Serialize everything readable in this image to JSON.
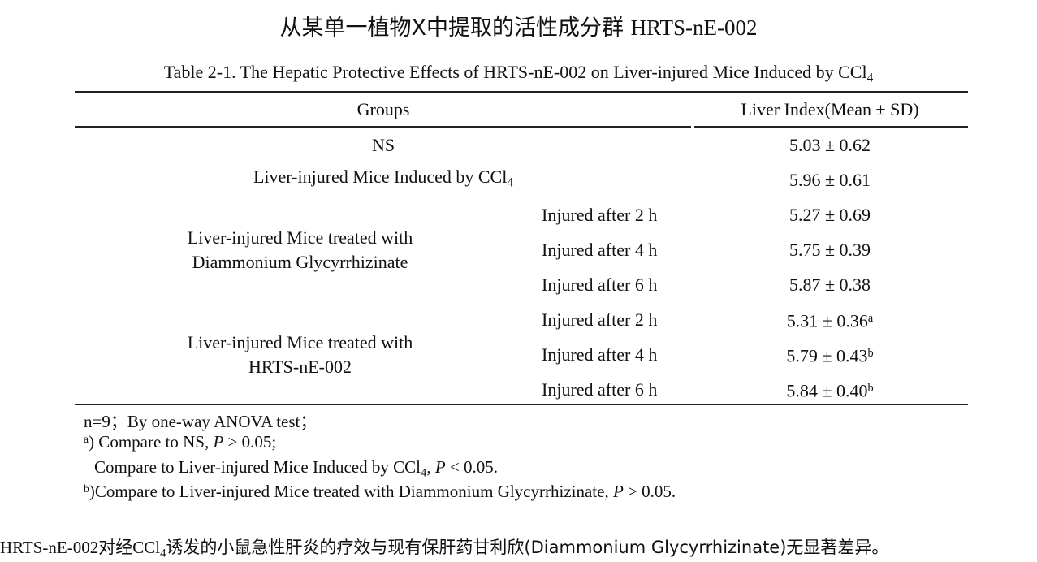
{
  "title": [
    {
      "text": "从某单一植物X中提取的活性成分群 ",
      "style": "sans"
    },
    {
      "text": "HRTS-nE-002"
    }
  ],
  "table": {
    "caption": [
      {
        "text": "Table 2-1. The Hepatic Protective Effects of HRTS-nE-002 on Liver-injured Mice Induced by CCl"
      },
      {
        "text": "4",
        "style": "sub"
      }
    ],
    "header": [
      "Groups",
      "Liver Index(Mean ± SD)"
    ],
    "rows": [
      {
        "group": [
          [
            {
              "text": "NS"
            }
          ]
        ],
        "value": [
          {
            "text": "5.03 ± 0.62"
          }
        ]
      },
      {
        "group": [
          [
            {
              "text": "Liver-injured Mice Induced by CCl"
            },
            {
              "text": "4",
              "style": "sub"
            }
          ]
        ],
        "value": [
          {
            "text": "5.96 ± 0.61"
          }
        ]
      },
      {
        "group": [
          [
            {
              "text": "Liver-injured Mice treated with"
            }
          ],
          [
            {
              "text": "Diammonium Glycyrrhizinate"
            }
          ]
        ],
        "subrows": [
          {
            "time": "Injured after 2 h",
            "value": [
              {
                "text": "5.27 ± 0.69"
              }
            ]
          },
          {
            "time": "Injured after 4 h",
            "value": [
              {
                "text": "5.75 ± 0.39"
              }
            ]
          },
          {
            "time": "Injured after 6 h",
            "value": [
              {
                "text": "5.87 ± 0.38"
              }
            ]
          }
        ]
      },
      {
        "group": [
          [
            {
              "text": "Liver-injured Mice treated with"
            }
          ],
          [
            {
              "text": "HRTS-nE-002"
            }
          ]
        ],
        "subrows": [
          {
            "time": "Injured after 2 h",
            "value": [
              {
                "text": "5.31 ± 0.36"
              },
              {
                "text": "a",
                "style": "sup"
              }
            ]
          },
          {
            "time": "Injured after 4 h",
            "value": [
              {
                "text": "5.79 ± 0.43"
              },
              {
                "text": "b",
                "style": "sup"
              }
            ]
          },
          {
            "time": "Injured after 6 h",
            "value": [
              {
                "text": "5.84 ± 0.40"
              },
              {
                "text": "b",
                "style": "sup"
              }
            ]
          }
        ]
      }
    ],
    "notes": [
      [
        {
          "text": "n=9；By one-way ANOVA test；"
        }
      ],
      [
        {
          "text": "a",
          "style": "sup"
        },
        {
          "text": ") Compare to NS, "
        },
        {
          "text": "P",
          "style": "italic"
        },
        {
          "text": " > 0.05;"
        }
      ],
      [
        {
          "text": "Compare to Liver-injured Mice Induced by CCl"
        },
        {
          "text": "4",
          "style": "sub"
        },
        {
          "text": ", "
        },
        {
          "text": "P",
          "style": "italic"
        },
        {
          "text": " < 0.05."
        }
      ],
      [
        {
          "text": "b",
          "style": "sup"
        },
        {
          "text": ")Compare to Liver-injured Mice treated with Diammonium Glycyrrhizinate, "
        },
        {
          "text": "P",
          "style": "italic"
        },
        {
          "text": " > 0.05."
        }
      ]
    ]
  },
  "conclusion": [
    {
      "text": "HRTS-nE-002"
    },
    {
      "text": "对经",
      "style": "sans"
    },
    {
      "text": "CCl"
    },
    {
      "text": "4",
      "style": "sub"
    },
    {
      "text": "诱发的小鼠急性肝炎的疗效与现有保肝药甘利欣(Diammonium Glycyrrhizinate)无显著差异。",
      "style": "sans"
    }
  ]
}
